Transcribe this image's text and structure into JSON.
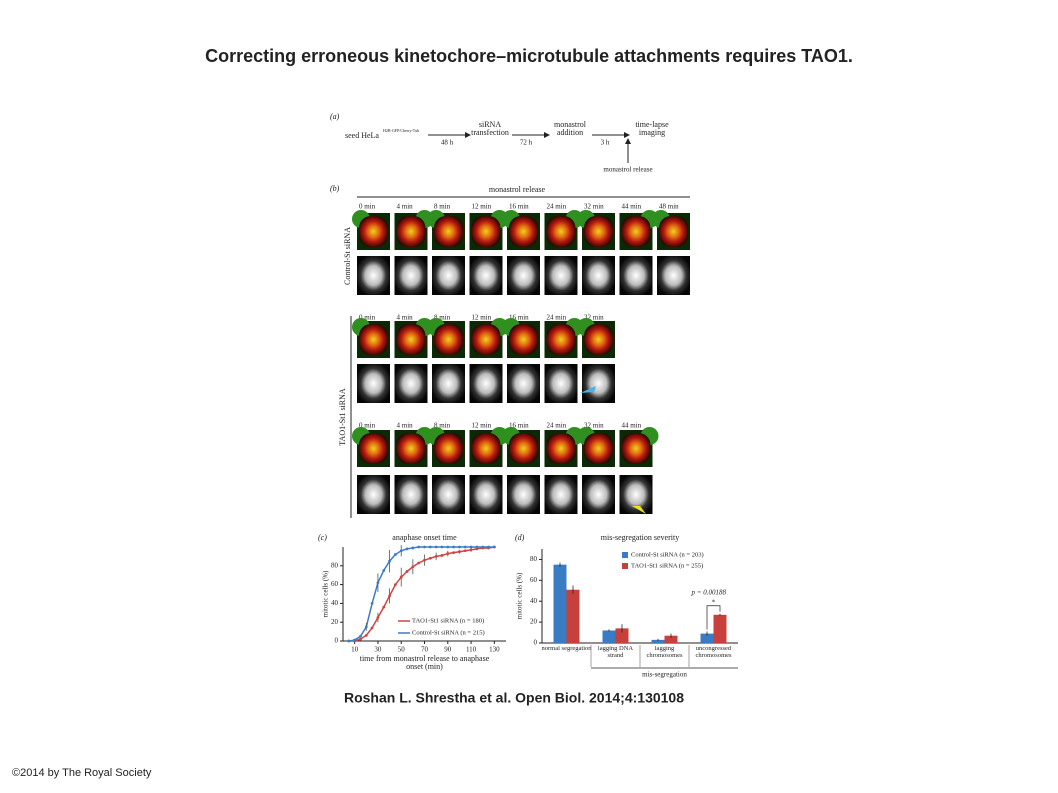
{
  "header": {
    "title": "Correcting erroneous kinetochore–microtubule attachments requires TAO1."
  },
  "panel_a": {
    "label": "(a)",
    "seed": "seed HeLa",
    "seed_sup": "H2B-GFP/Cherry-Tub",
    "step1_time": "48 h",
    "step2": "siRNA transfection",
    "step2_time": "72 h",
    "step3": "monastrol addition",
    "step3_time": "3 h",
    "step4": "time-lapse imaging",
    "release": "monastrol release"
  },
  "panel_b": {
    "label": "(b)",
    "header": "monastrol release",
    "control": {
      "label": "Control-St siRNA",
      "times": [
        "0 min",
        "4 min",
        "8 min",
        "12 min",
        "16 min",
        "24 min",
        "32 min",
        "44 min",
        "48 min"
      ]
    },
    "tao1": {
      "label": "TAO1-St1 siRNA",
      "row1_times": [
        "0 min",
        "4 min",
        "8 min",
        "12 min",
        "16 min",
        "24 min",
        "32 min"
      ],
      "row2_times": [
        "0 min",
        "4 min",
        "8 min",
        "12 min",
        "16 min",
        "24 min",
        "32 min",
        "44 min"
      ]
    }
  },
  "chart_data": [
    {
      "type": "line",
      "panel": "(c)",
      "title": "anaphase onset time",
      "x_label": "time from monastrol release to anaphase onset (min)",
      "y_label": "mitotic cells (%)",
      "x": [
        5,
        10,
        15,
        20,
        25,
        30,
        35,
        40,
        45,
        50,
        55,
        60,
        65,
        70,
        75,
        80,
        85,
        90,
        95,
        100,
        105,
        110,
        115,
        120,
        125,
        130
      ],
      "series": [
        {
          "name": "TAO1-St1 siRNA (n = 180)",
          "color": "#d0443f",
          "values": [
            0,
            0,
            2,
            6,
            14,
            25,
            36,
            48,
            60,
            68,
            74,
            79,
            83,
            86,
            88,
            90,
            91,
            93,
            94,
            95,
            96,
            97,
            98,
            99,
            99,
            100
          ],
          "errors": [
            null,
            null,
            null,
            null,
            null,
            5,
            null,
            8,
            null,
            10,
            null,
            8,
            null,
            6,
            null,
            4,
            null,
            3,
            null,
            2,
            null,
            2,
            null,
            null,
            null,
            null
          ]
        },
        {
          "name": "Control-St siRNA (n = 215)",
          "color": "#3a7cc4",
          "values": [
            0,
            1,
            5,
            15,
            40,
            62,
            75,
            85,
            92,
            96,
            98,
            99,
            100,
            100,
            100,
            100,
            100,
            100,
            100,
            100,
            100,
            100,
            100,
            100,
            100,
            100
          ],
          "errors": [
            null,
            null,
            null,
            4,
            null,
            10,
            null,
            12,
            null,
            6,
            null,
            null,
            null,
            null,
            null,
            null,
            null,
            null,
            null,
            null,
            null,
            null,
            null,
            null,
            null,
            null
          ]
        }
      ],
      "xlim": [
        0,
        140
      ],
      "xticks": [
        10,
        30,
        50,
        70,
        90,
        110,
        130
      ],
      "ylim": [
        0,
        100
      ],
      "yticks": [
        0,
        20,
        40,
        60,
        80
      ],
      "legend": "lower-right"
    },
    {
      "type": "bar",
      "panel": "(d)",
      "title": "mis-segregation severity",
      "y_label": "mitotic cells (%)",
      "categories": [
        "normal segregation",
        "lagging DNA strand",
        "lagging chromosomes",
        "uncongressed chromosomes"
      ],
      "group_label": "mis-segregation",
      "series": [
        {
          "name": "Control-St siRNA (n = 203)",
          "color": "#3a7cc4",
          "values": [
            75,
            12,
            3,
            9
          ],
          "errors": [
            2,
            1,
            1,
            2
          ]
        },
        {
          "name": "TAO1-St1 siRNA (n = 255)",
          "color": "#c8403b",
          "values": [
            51,
            14,
            7,
            27
          ],
          "errors": [
            4,
            4,
            2,
            1
          ]
        }
      ],
      "annotations": [
        "p = 0.00188",
        "*"
      ],
      "ylim": [
        0,
        90
      ],
      "yticks": [
        0,
        20,
        40,
        60,
        80
      ],
      "legend": "upper-right"
    }
  ],
  "citation": "Roshan L. Shrestha et al. Open Biol. 2014;4:130108",
  "copyright": "©2014 by The Royal Society"
}
